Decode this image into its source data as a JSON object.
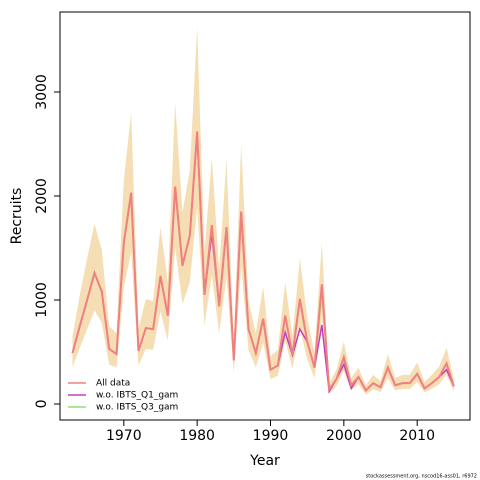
{
  "chart_data": {
    "type": "line",
    "x_label": "Year",
    "y_label": "Recruits",
    "footnote": "stockassessment.org, nscod16-ass01, r6972",
    "x": [
      1963,
      1964,
      1965,
      1966,
      1967,
      1968,
      1969,
      1970,
      1971,
      1972,
      1973,
      1974,
      1975,
      1976,
      1977,
      1978,
      1979,
      1980,
      1981,
      1982,
      1983,
      1984,
      1985,
      1986,
      1987,
      1988,
      1989,
      1990,
      1991,
      1992,
      1993,
      1994,
      1995,
      1996,
      1997,
      1998,
      1999,
      2000,
      2001,
      2002,
      2003,
      2004,
      2005,
      2006,
      2007,
      2008,
      2009,
      2010,
      2011,
      2012,
      2013,
      2014,
      2015
    ],
    "band": {
      "color": "#f5deb3",
      "upper": [
        650,
        1050,
        1400,
        1730,
        1480,
        750,
        680,
        2150,
        2800,
        720,
        1010,
        990,
        1700,
        1170,
        2900,
        1840,
        2250,
        3620,
        1460,
        2370,
        1300,
        2350,
        590,
        2500,
        1000,
        680,
        1130,
        460,
        520,
        1170,
        650,
        1400,
        830,
        490,
        1550,
        200,
        330,
        600,
        250,
        350,
        180,
        280,
        220,
        480,
        250,
        280,
        280,
        400,
        210,
        280,
        360,
        540,
        240
      ],
      "lower": [
        350,
        540,
        720,
        900,
        780,
        380,
        350,
        1120,
        1460,
        370,
        530,
        520,
        890,
        610,
        1500,
        960,
        1170,
        1890,
        760,
        1240,
        680,
        1220,
        300,
        1330,
        520,
        350,
        590,
        240,
        270,
        610,
        340,
        730,
        430,
        250,
        830,
        100,
        170,
        320,
        130,
        190,
        90,
        140,
        115,
        250,
        130,
        145,
        145,
        210,
        110,
        145,
        190,
        280,
        120
      ]
    },
    "series": [
      {
        "name": "All data",
        "color": "#f08080",
        "values": [
          490,
          750,
          1000,
          1260,
          1080,
          530,
          480,
          1550,
          2030,
          510,
          730,
          720,
          1230,
          850,
          2090,
          1330,
          1620,
          2620,
          1050,
          1720,
          940,
          1700,
          420,
          1850,
          720,
          490,
          820,
          330,
          370,
          850,
          470,
          1010,
          600,
          350,
          1150,
          140,
          240,
          450,
          180,
          260,
          130,
          200,
          160,
          350,
          180,
          200,
          200,
          290,
          150,
          200,
          260,
          390,
          170
        ]
      },
      {
        "name": "w.o. IBTS_Q1_gam",
        "color": "#c040c0",
        "values": [
          490,
          750,
          1000,
          1260,
          1080,
          530,
          480,
          1550,
          2030,
          510,
          730,
          720,
          1230,
          850,
          2090,
          1330,
          1620,
          2600,
          1050,
          1640,
          940,
          1700,
          420,
          1850,
          720,
          490,
          820,
          330,
          370,
          690,
          470,
          720,
          600,
          350,
          760,
          120,
          240,
          380,
          150,
          260,
          130,
          200,
          160,
          350,
          180,
          200,
          200,
          290,
          150,
          200,
          260,
          330,
          170
        ]
      },
      {
        "name": "w.o. IBTS_Q3_gam",
        "color": "#90e070",
        "values": [
          490,
          750,
          1000,
          1260,
          1080,
          530,
          480,
          1550,
          2030,
          510,
          730,
          720,
          1230,
          850,
          2090,
          1330,
          1620,
          2620,
          1050,
          1720,
          940,
          1700,
          420,
          1850,
          720,
          490,
          820,
          330,
          370,
          850,
          470,
          1010,
          600,
          350,
          1100,
          140,
          240,
          430,
          180,
          260,
          130,
          200,
          160,
          350,
          180,
          200,
          200,
          290,
          150,
          200,
          260,
          390,
          170
        ]
      }
    ],
    "xlim": [
      1961.3,
      2017.2
    ],
    "xticks": [
      1970,
      1980,
      1990,
      2000,
      2010
    ],
    "ylim": [
      -154,
      3769
    ],
    "yticks": [
      0,
      1000,
      2000,
      3000
    ],
    "legend": "bottom-left"
  }
}
